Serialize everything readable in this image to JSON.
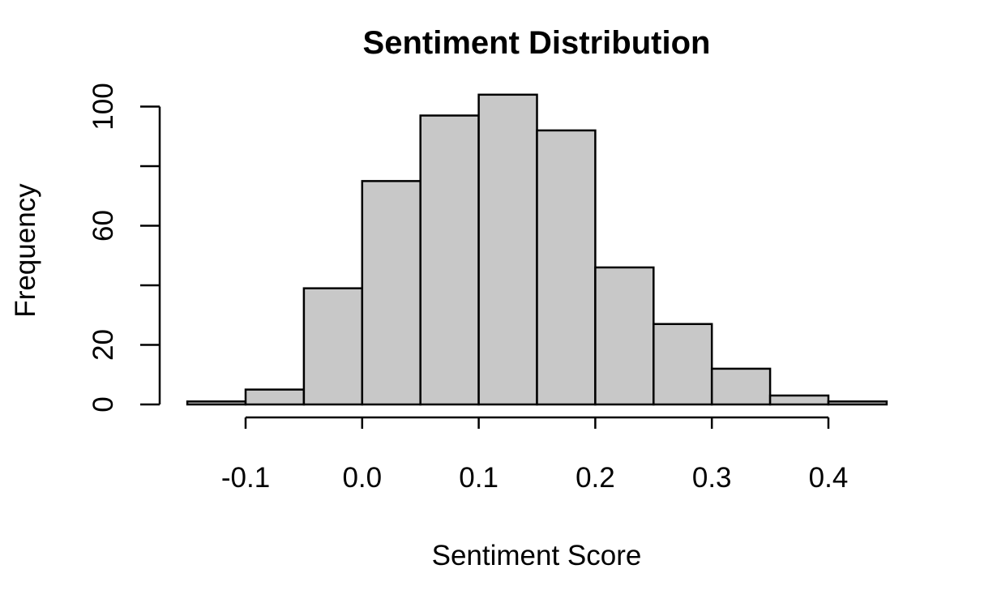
{
  "chart_data": {
    "type": "bar",
    "title": "Sentiment Distribution",
    "xlabel": "Sentiment Score",
    "ylabel": "Frequency",
    "bins": [
      {
        "start": -0.15,
        "end": -0.1,
        "count": 1
      },
      {
        "start": -0.1,
        "end": -0.05,
        "count": 5
      },
      {
        "start": -0.05,
        "end": 0.0,
        "count": 39
      },
      {
        "start": 0.0,
        "end": 0.05,
        "count": 75
      },
      {
        "start": 0.05,
        "end": 0.1,
        "count": 97
      },
      {
        "start": 0.1,
        "end": 0.15,
        "count": 104
      },
      {
        "start": 0.15,
        "end": 0.2,
        "count": 92
      },
      {
        "start": 0.2,
        "end": 0.25,
        "count": 46
      },
      {
        "start": 0.25,
        "end": 0.3,
        "count": 27
      },
      {
        "start": 0.3,
        "end": 0.35,
        "count": 12
      },
      {
        "start": 0.35,
        "end": 0.4,
        "count": 3
      },
      {
        "start": 0.4,
        "end": 0.45,
        "count": 1
      }
    ],
    "xticks": [
      {
        "value": -0.1,
        "label": "-0.1"
      },
      {
        "value": 0.0,
        "label": "0.0"
      },
      {
        "value": 0.1,
        "label": "0.1"
      },
      {
        "value": 0.2,
        "label": "0.2"
      },
      {
        "value": 0.3,
        "label": "0.3"
      },
      {
        "value": 0.4,
        "label": "0.4"
      }
    ],
    "yticks": [
      {
        "value": 0,
        "label": "0"
      },
      {
        "value": 20,
        "label": "20"
      },
      {
        "value": 40,
        "label": ""
      },
      {
        "value": 60,
        "label": "60"
      },
      {
        "value": 80,
        "label": ""
      },
      {
        "value": 100,
        "label": "100"
      }
    ],
    "xlim": [
      -0.15,
      0.45
    ],
    "ylim": [
      0,
      104
    ],
    "grid": false,
    "bar_fill": "#c8c8c8",
    "bar_stroke": "#000000"
  }
}
